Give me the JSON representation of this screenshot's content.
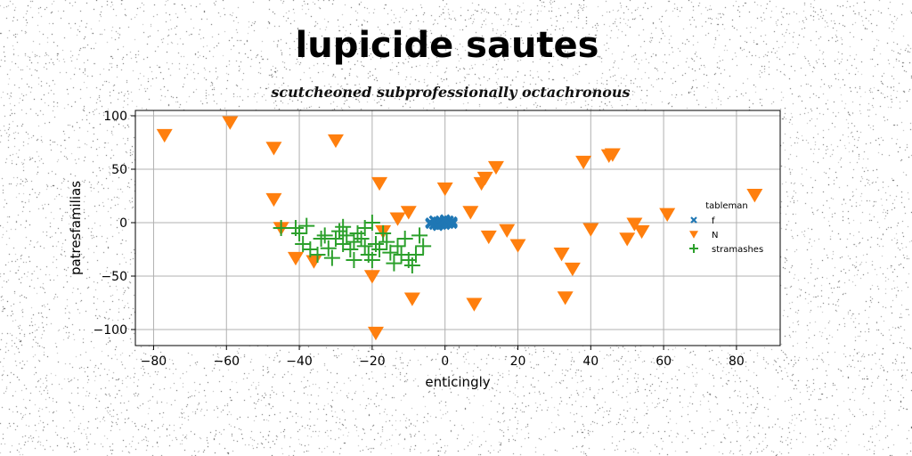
{
  "chart_data": {
    "type": "scatter",
    "title": "lupicide sautes",
    "subtitle": "scutcheoned subprofessionally octachronous",
    "xlabel": "enticingly",
    "ylabel": "patresfamilias",
    "xlim": [
      -85,
      92
    ],
    "ylim": [
      -115,
      105
    ],
    "xticks": [
      -80,
      -60,
      -40,
      -20,
      0,
      20,
      40,
      60,
      80
    ],
    "yticks": [
      100,
      50,
      0,
      -50,
      -100
    ],
    "grid": true,
    "legend": {
      "title": "tableman",
      "position": "center-right"
    },
    "series": [
      {
        "name": "f",
        "marker": "x-filled",
        "color": "#1f77b4",
        "points": [
          [
            -4,
            0
          ],
          [
            -3,
            2
          ],
          [
            -2,
            -1
          ],
          [
            -1,
            1
          ],
          [
            0,
            0
          ],
          [
            1,
            2
          ],
          [
            2,
            -1
          ],
          [
            -3,
            -2
          ],
          [
            -2,
            1
          ],
          [
            -1,
            -2
          ],
          [
            0,
            2
          ],
          [
            1,
            0
          ],
          [
            2,
            1
          ],
          [
            -4,
            -1
          ],
          [
            -1,
            0
          ],
          [
            0,
            -2
          ],
          [
            1,
            -1
          ],
          [
            2,
            0
          ],
          [
            -2,
            -3
          ],
          [
            0,
            3
          ]
        ]
      },
      {
        "name": "N",
        "marker": "triangle-down",
        "color": "#ff7f0e",
        "points": [
          [
            -77,
            82
          ],
          [
            -59,
            94
          ],
          [
            -47,
            70
          ],
          [
            -30,
            77
          ],
          [
            -47,
            22
          ],
          [
            -45,
            -5
          ],
          [
            -41,
            -33
          ],
          [
            -36,
            -36
          ],
          [
            -18,
            37
          ],
          [
            -10,
            10
          ],
          [
            -13,
            4
          ],
          [
            -17,
            -8
          ],
          [
            -20,
            -50
          ],
          [
            -19,
            -103
          ],
          [
            -9,
            -71
          ],
          [
            0,
            32
          ],
          [
            7,
            10
          ],
          [
            8,
            -76
          ],
          [
            10,
            37
          ],
          [
            11,
            42
          ],
          [
            12,
            -13
          ],
          [
            14,
            52
          ],
          [
            17,
            -7
          ],
          [
            20,
            -21
          ],
          [
            32,
            -29
          ],
          [
            35,
            -43
          ],
          [
            33,
            -70
          ],
          [
            38,
            57
          ],
          [
            40,
            -6
          ],
          [
            45,
            63
          ],
          [
            46,
            64
          ],
          [
            50,
            -15
          ],
          [
            52,
            -1
          ],
          [
            54,
            -8
          ],
          [
            61,
            8
          ],
          [
            85,
            26
          ]
        ]
      },
      {
        "name": "stramashes",
        "marker": "plus",
        "color": "#2ca02c",
        "points": [
          [
            -45,
            -5
          ],
          [
            -41,
            -5
          ],
          [
            -40,
            -10
          ],
          [
            -39,
            -20
          ],
          [
            -38,
            -3
          ],
          [
            -37,
            -25
          ],
          [
            -35,
            -30
          ],
          [
            -34,
            -15
          ],
          [
            -33,
            -12
          ],
          [
            -32,
            -24
          ],
          [
            -31,
            -33
          ],
          [
            -30,
            -15
          ],
          [
            -29,
            -8
          ],
          [
            -28,
            -20
          ],
          [
            -27,
            -12
          ],
          [
            -26,
            -25
          ],
          [
            -25,
            -18
          ],
          [
            -24,
            -10
          ],
          [
            -23,
            -15
          ],
          [
            -22,
            -5
          ],
          [
            -21,
            -30
          ],
          [
            -20,
            -35
          ],
          [
            -19,
            -20
          ],
          [
            -18,
            -25
          ],
          [
            -17,
            -10
          ],
          [
            -16,
            -18
          ],
          [
            -15,
            -28
          ],
          [
            -14,
            -38
          ],
          [
            -13,
            -22
          ],
          [
            -12,
            -30
          ],
          [
            -11,
            -15
          ],
          [
            -10,
            -35
          ],
          [
            -9,
            -40
          ],
          [
            -8,
            -30
          ],
          [
            -7,
            -12
          ],
          [
            -6,
            -22
          ],
          [
            -20,
            0
          ],
          [
            -22,
            -22
          ],
          [
            -25,
            -35
          ],
          [
            -28,
            -4
          ]
        ]
      }
    ]
  }
}
